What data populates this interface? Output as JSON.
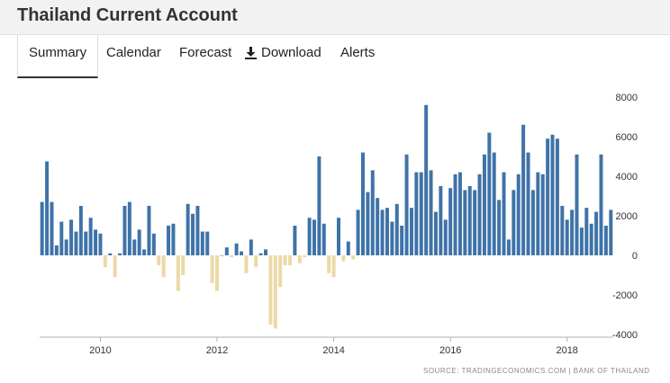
{
  "header": {
    "title": "Thailand Current Account"
  },
  "tabs": [
    {
      "label": "Summary"
    },
    {
      "label": "Calendar"
    },
    {
      "label": "Forecast"
    },
    {
      "label": "Download",
      "icon": "download-icon"
    },
    {
      "label": "Alerts"
    }
  ],
  "source": {
    "label": "SOURCE: TRADINGECONOMICS.COM  |  BANK OF THAILAND"
  },
  "colors": {
    "positive": "#3f73a8",
    "negative": "#ecd9a6"
  },
  "chart_data": {
    "type": "bar",
    "title": "",
    "xlabel": "",
    "ylabel": "",
    "ylim": [
      -4000,
      8000
    ],
    "yticks": [
      -4000,
      -2000,
      0,
      2000,
      4000,
      6000,
      8000
    ],
    "xticks": [
      "2010",
      "2012",
      "2014",
      "2016",
      "2018"
    ],
    "x_start": "2009-01",
    "frequency": "monthly",
    "grid": false,
    "legend": "none",
    "values": [
      2700,
      4750,
      2700,
      500,
      1700,
      800,
      1800,
      1200,
      2500,
      1200,
      1900,
      1300,
      1100,
      -600,
      100,
      -1100,
      100,
      2500,
      2700,
      800,
      1300,
      300,
      2500,
      1100,
      -500,
      -1100,
      1500,
      1600,
      -1800,
      -1000,
      2600,
      2100,
      2500,
      1200,
      1200,
      -1400,
      -1800,
      0,
      400,
      -100,
      600,
      200,
      -900,
      800,
      -600,
      100,
      300,
      -3500,
      -3700,
      -1600,
      -500,
      -500,
      1500,
      -400,
      -100,
      1900,
      1800,
      5000,
      1600,
      -900,
      -1100,
      1900,
      -300,
      700,
      -200,
      2300,
      5200,
      3200,
      4300,
      2900,
      2300,
      2400,
      1700,
      2600,
      1500,
      5100,
      2400,
      4200,
      4200,
      7600,
      4300,
      2200,
      3500,
      1800,
      3400,
      4100,
      4200,
      3300,
      3500,
      3300,
      4100,
      5100,
      6200,
      5200,
      2800,
      4200,
      800,
      3300,
      4100,
      6600,
      5200,
      3300,
      4200,
      4100,
      5900,
      6100,
      5900,
      2500,
      1800,
      2300,
      5100,
      1400,
      2400,
      1600,
      2200,
      5100,
      1500,
      2300
    ]
  }
}
